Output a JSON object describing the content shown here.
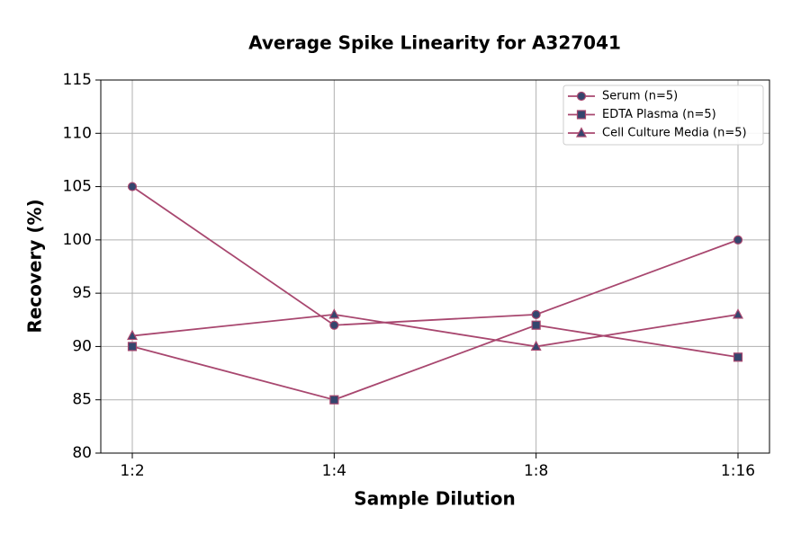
{
  "chart_data": {
    "type": "line",
    "title": "Average Spike Linearity for A327041",
    "x_label": "Sample Dilution",
    "y_label": "Recovery (%)",
    "categories": [
      "1:2",
      "1:4",
      "1:8",
      "1:16"
    ],
    "series": [
      {
        "name": "Serum (n=5)",
        "color": "#a8476f",
        "marker": "circle",
        "marker_color": "#34466e",
        "values": [
          105,
          92,
          93,
          100
        ]
      },
      {
        "name": "EDTA Plasma (n=5)",
        "color": "#a8476f",
        "marker": "square",
        "marker_color": "#34466e",
        "values": [
          90,
          85,
          92,
          89
        ]
      },
      {
        "name": "Cell Culture Media (n=5)",
        "color": "#a8476f",
        "marker": "triangle",
        "marker_color": "#34466e",
        "values": [
          91,
          93,
          90,
          93
        ]
      }
    ],
    "ylim": [
      80,
      115
    ],
    "yticks": [
      80,
      85,
      90,
      95,
      100,
      105,
      110,
      115
    ],
    "grid": true,
    "legend": "upper right"
  }
}
